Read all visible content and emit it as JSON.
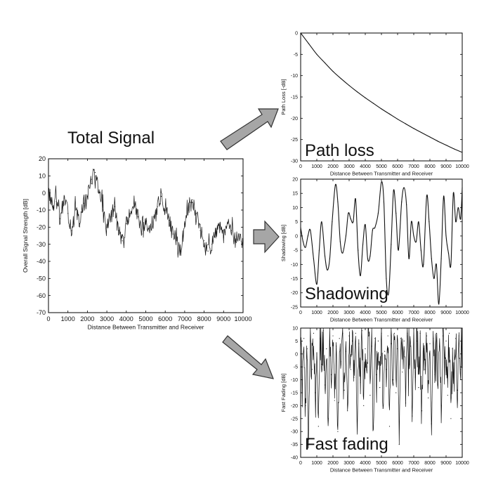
{
  "labels": {
    "total_signal": "Total Signal"
  },
  "chart_data": [
    {
      "id": "total",
      "type": "line",
      "title": "Total Signal",
      "xlabel": "Distance Between Transmitter and Receiver",
      "ylabel": "Overall Signal Strength [dB]",
      "xlim": [
        0,
        10000
      ],
      "ylim": [
        -70,
        20
      ],
      "x_ticks": [
        0,
        1000,
        2000,
        3000,
        4000,
        5000,
        6000,
        7000,
        8000,
        9000,
        10000
      ],
      "y_ticks": [
        20,
        10,
        0,
        -10,
        -20,
        -30,
        -40,
        -50,
        -60,
        -70
      ],
      "line_color": "#111111",
      "x_step": 200,
      "series": [
        {
          "values": [
            2,
            -8,
            -5,
            -15,
            -3,
            -12,
            -22,
            -10,
            -18,
            -6,
            -2,
            8,
            12,
            0,
            -10,
            -20,
            -14,
            -8,
            -22,
            -28,
            -18,
            -12,
            -6,
            -14,
            -24,
            -18,
            -22,
            -14,
            -8,
            -2,
            -10,
            -16,
            -24,
            -28,
            -34,
            -18,
            -10,
            -4,
            -12,
            -22,
            -28,
            -34,
            -30,
            -24,
            -20,
            -26,
            -18,
            -22,
            -28,
            -24,
            -32
          ]
        }
      ],
      "annotation": ""
    },
    {
      "id": "pathloss",
      "type": "line",
      "xlabel": "Distance Between Transmitter and Receiver",
      "ylabel": "Path Loss [-dB]",
      "xlim": [
        0,
        10000
      ],
      "ylim": [
        -30,
        0
      ],
      "x_ticks": [
        0,
        1000,
        2000,
        3000,
        4000,
        5000,
        6000,
        7000,
        8000,
        9000,
        10000
      ],
      "y_ticks": [
        0,
        -5,
        -10,
        -15,
        -20,
        -25,
        -30
      ],
      "line_color": "#111111",
      "x": [
        0,
        500,
        1000,
        1500,
        2000,
        2500,
        3000,
        3500,
        4000,
        4500,
        5000,
        5500,
        6000,
        6500,
        7000,
        7500,
        8000,
        8500,
        9000,
        9500,
        10000
      ],
      "series": [
        {
          "values": [
            0,
            -2.5,
            -5,
            -7,
            -9,
            -10.7,
            -12.3,
            -13.8,
            -15.2,
            -16.5,
            -17.8,
            -19,
            -20.2,
            -21.3,
            -22.4,
            -23.4,
            -24.4,
            -25.4,
            -26.3,
            -27.2,
            -28
          ]
        }
      ],
      "annotation": "Path loss"
    },
    {
      "id": "shadowing",
      "type": "line",
      "xlabel": "Distance Between Transmitter and Receiver",
      "ylabel": "Shadowing [dB]",
      "xlim": [
        0,
        10000
      ],
      "ylim": [
        -25,
        20
      ],
      "x_ticks": [
        0,
        1000,
        2000,
        3000,
        4000,
        5000,
        6000,
        7000,
        8000,
        9000,
        10000
      ],
      "y_ticks": [
        20,
        15,
        10,
        5,
        0,
        -5,
        -10,
        -15,
        -20,
        -25
      ],
      "line_color": "#111111",
      "smooth": true,
      "x": [
        0,
        150,
        300,
        450,
        600,
        800,
        1000,
        1150,
        1300,
        1500,
        1650,
        1800,
        1950,
        2150,
        2300,
        2450,
        2600,
        2800,
        2950,
        3100,
        3250,
        3400,
        3550,
        3700,
        3850,
        4000,
        4150,
        4300,
        4450,
        4600,
        4800,
        5000,
        5150,
        5300,
        5450,
        5600,
        5750,
        5900,
        6050,
        6250,
        6400,
        6550,
        6700,
        6850,
        7000,
        7150,
        7300,
        7450,
        7600,
        7800,
        7950,
        8100,
        8250,
        8400,
        8550,
        8700,
        8850,
        9000,
        9150,
        9300,
        9450,
        9600,
        9750,
        9900,
        10000
      ],
      "series": [
        {
          "values": [
            3,
            -2,
            -4,
            0,
            2,
            -8,
            -17,
            -5,
            5,
            -7,
            -12,
            -8,
            5,
            18,
            12,
            -2,
            -6,
            0,
            8,
            6,
            5,
            13,
            -5,
            -14,
            -3,
            4,
            -8,
            -7,
            2,
            3,
            8,
            19,
            12,
            -15,
            -20,
            -3,
            16,
            8,
            -5,
            12,
            17,
            11,
            -8,
            5,
            0,
            -2,
            5,
            -5,
            -10,
            14,
            5,
            -8,
            -15,
            -10,
            -24,
            -8,
            14,
            0,
            -6,
            -10,
            15,
            5,
            10,
            6,
            17
          ]
        }
      ],
      "annotation": "Shadowing"
    },
    {
      "id": "fastfading",
      "type": "line",
      "xlabel": "Distance Between Transmitter and Receiver",
      "ylabel": "Fast Fading [dB]",
      "xlim": [
        0,
        10000
      ],
      "ylim": [
        -40,
        10
      ],
      "x_ticks": [
        0,
        1000,
        2000,
        3000,
        4000,
        5000,
        6000,
        7000,
        8000,
        9000,
        10000
      ],
      "y_ticks": [
        10,
        5,
        0,
        -5,
        -10,
        -15,
        -20,
        -25,
        -30,
        -35,
        -40
      ],
      "line_color": "#111111",
      "x_step": 100,
      "series": [
        {
          "values": [
            3,
            -10,
            6,
            -20,
            2,
            -33,
            5,
            -6,
            8,
            -15,
            0,
            -28,
            6,
            -4,
            9,
            -12,
            2,
            -25,
            5,
            -8,
            7,
            -18,
            3,
            -30,
            6,
            -3,
            8,
            -14,
            1,
            -22,
            7,
            -6,
            5,
            -9,
            8,
            -26,
            4,
            -11,
            9,
            -20,
            2,
            -5,
            7,
            -16,
            3,
            -34,
            6,
            -8,
            5,
            -13,
            8,
            -21,
            1,
            -6,
            7,
            -28,
            4,
            -10,
            8,
            -15,
            2,
            -35,
            6,
            -7,
            5,
            -19,
            8,
            -4,
            3,
            -24,
            7,
            -9,
            5,
            -13,
            8,
            -22,
            2,
            -6,
            7,
            -17,
            4,
            -27,
            6,
            -8,
            8,
            -12,
            3,
            -20,
            7,
            -5,
            5,
            -16,
            8,
            -25,
            2,
            -9,
            6,
            -14,
            7,
            -6,
            4
          ]
        }
      ],
      "annotation": "Fast fading"
    }
  ]
}
